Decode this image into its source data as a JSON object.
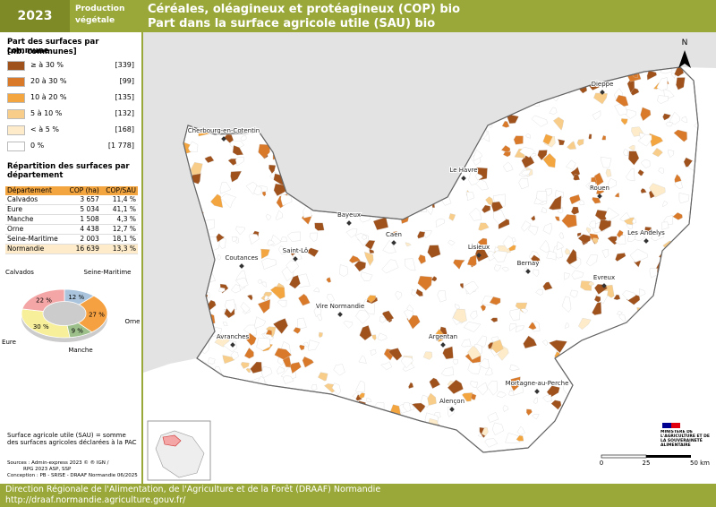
{
  "header": {
    "year": "2023",
    "theme": "Production végétale",
    "title": "Céréales, oléagineux et protéagineux (COP) bio",
    "subtitle": "Part dans la surface agricole utile (SAU) bio"
  },
  "legend": {
    "title": "Part des surfaces par commune",
    "subtitle": "[nb. communes]",
    "classes": [
      {
        "label": "≥ à 30 %",
        "count": "[339]",
        "color": "#a0521d"
      },
      {
        "label": "20 à 30 %",
        "count": "[99]",
        "color": "#d97a2b"
      },
      {
        "label": "10 à 20 %",
        "count": "[135]",
        "color": "#f3a540"
      },
      {
        "label": "5 à 10 %",
        "count": "[132]",
        "color": "#f8cd8a"
      },
      {
        "label": "< à 5 %",
        "count": "[168]",
        "color": "#fdebc9"
      },
      {
        "label": "0 %",
        "count": "[1 778]",
        "color": "#ffffff"
      }
    ]
  },
  "table": {
    "title": "Répartition des surfaces par département",
    "header": [
      "Département",
      "COP (ha)",
      "COP/SAU"
    ],
    "rows": [
      [
        "Calvados",
        "3 657",
        "11,4 %"
      ],
      [
        "Eure",
        "5 034",
        "41,1 %"
      ],
      [
        "Manche",
        "1 508",
        "4,3 %"
      ],
      [
        "Orne",
        "4 438",
        "12,7 %"
      ],
      [
        "Seine-Maritime",
        "2 003",
        "18,1 %"
      ],
      [
        "Normandie",
        "16 639",
        "13,3 %"
      ]
    ]
  },
  "pie": {
    "type": "pie",
    "categories": [
      "Seine-Maritime",
      "Orne",
      "Manche",
      "Eure",
      "Calvados"
    ],
    "values": [
      12,
      27,
      9,
      30,
      22
    ],
    "value_labels": [
      "12 %",
      "27 %",
      "9 %",
      "30 %",
      "22 %"
    ],
    "colors": [
      "#a9c4dc",
      "#f5a142",
      "#9dc08b",
      "#f7ef9a",
      "#f4a6a6"
    ]
  },
  "note": "Surface agricole utile (SAU) = somme des surfaces agricoles déclarées à la PAC",
  "sources": [
    "Sources : Admin-express 2023 © ® IGN /",
    "RPG 2023 ASP, SSP",
    "Conception : PB - SRISE - DRAAF Normandie 06/2025"
  ],
  "map": {
    "north": "N",
    "scale": [
      "0",
      "25",
      "50 km"
    ],
    "cities": [
      "Dieppe",
      "Cherbourg-en-Cotentin",
      "Le Havre",
      "Rouen",
      "Bayeux",
      "Les Andelys",
      "Saint-Lô",
      "Caen",
      "Lisieux",
      "Coutances",
      "Bernay",
      "Evreux",
      "Vire Normandie",
      "Avranches",
      "Argentan",
      "Mortagne-au-Perche",
      "Alençon"
    ]
  },
  "logo": "MINISTÈRE DE L'AGRICULTURE ET DE LA SOUVERAINETÉ ALIMENTAIRE",
  "footer": {
    "org": "Direction Régionale de l'Alimentation, de l'Agriculture et de la Forêt (DRAAF) Normandie",
    "url": "http://draaf.normandie.agriculture.gouv.fr/"
  }
}
